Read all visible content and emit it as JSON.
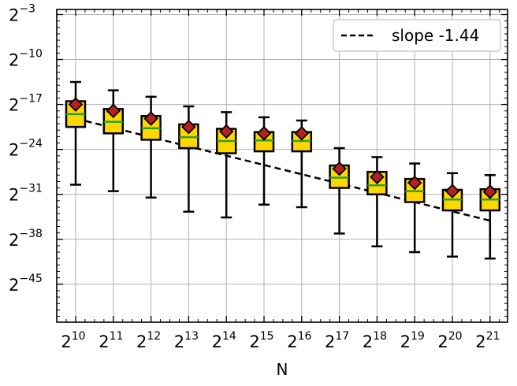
{
  "chart_data": {
    "type": "box",
    "title": "",
    "xlabel": "N",
    "ylabel": "",
    "x_scale": "log2",
    "y_scale": "log2",
    "x_tick_labels": [
      {
        "base": "2",
        "exp": "10"
      },
      {
        "base": "2",
        "exp": "11"
      },
      {
        "base": "2",
        "exp": "12"
      },
      {
        "base": "2",
        "exp": "13"
      },
      {
        "base": "2",
        "exp": "14"
      },
      {
        "base": "2",
        "exp": "15"
      },
      {
        "base": "2",
        "exp": "16"
      },
      {
        "base": "2",
        "exp": "17"
      },
      {
        "base": "2",
        "exp": "18"
      },
      {
        "base": "2",
        "exp": "19"
      },
      {
        "base": "2",
        "exp": "20"
      },
      {
        "base": "2",
        "exp": "21"
      }
    ],
    "y_tick_labels": [
      {
        "base": "2",
        "exp": "−3"
      },
      {
        "base": "2",
        "exp": "−10"
      },
      {
        "base": "2",
        "exp": "−17"
      },
      {
        "base": "2",
        "exp": "−24"
      },
      {
        "base": "2",
        "exp": "−31"
      },
      {
        "base": "2",
        "exp": "−38"
      },
      {
        "base": "2",
        "exp": "−45"
      }
    ],
    "y_tick_values": [
      -3,
      -10,
      -17,
      -24,
      -31,
      -38,
      -45
    ],
    "ylim_log2": [
      -52,
      -2
    ],
    "grid": true,
    "legend_position": "top-right",
    "colors": {
      "box_fill": "#FFD700",
      "box_edge": "#000000",
      "median": "#2CA02C",
      "mean_marker": "#B22222",
      "fit_line": "#000000",
      "grid": "#b0b0b0"
    },
    "boxes": [
      {
        "N_log2": 10,
        "whisker_low": -29.5,
        "q1": -20.5,
        "median": -18.5,
        "q3": -16.5,
        "whisker_high": -13.5,
        "mean": -17.0
      },
      {
        "N_log2": 11,
        "whisker_low": -30.5,
        "q1": -21.5,
        "median": -19.7,
        "q3": -17.7,
        "whisker_high": -14.8,
        "mean": -18.0
      },
      {
        "N_log2": 12,
        "whisker_low": -31.5,
        "q1": -22.5,
        "median": -20.7,
        "q3": -18.8,
        "whisker_high": -15.8,
        "mean": -19.2
      },
      {
        "N_log2": 13,
        "whisker_low": -33.7,
        "q1": -23.8,
        "median": -22.1,
        "q3": -20.1,
        "whisker_high": -17.3,
        "mean": -20.5
      },
      {
        "N_log2": 14,
        "whisker_low": -34.6,
        "q1": -24.6,
        "median": -22.7,
        "q3": -20.8,
        "whisker_high": -18.2,
        "mean": -21.2
      },
      {
        "N_log2": 15,
        "whisker_low": -32.6,
        "q1": -24.3,
        "median": -22.6,
        "q3": -21.3,
        "whisker_high": -19.0,
        "mean": -21.5
      },
      {
        "N_log2": 16,
        "whisker_low": -33.0,
        "q1": -24.3,
        "median": -22.7,
        "q3": -21.3,
        "whisker_high": -19.5,
        "mean": -21.5
      },
      {
        "N_log2": 17,
        "whisker_low": -37.1,
        "q1": -30.0,
        "median": -28.4,
        "q3": -26.5,
        "whisker_high": -23.8,
        "mean": -27.0
      },
      {
        "N_log2": 18,
        "whisker_low": -39.1,
        "q1": -31.0,
        "median": -29.6,
        "q3": -27.5,
        "whisker_high": -25.2,
        "mean": -28.3
      },
      {
        "N_log2": 19,
        "whisker_low": -40.0,
        "q1": -32.2,
        "median": -30.5,
        "q3": -28.6,
        "whisker_high": -26.2,
        "mean": -29.2
      },
      {
        "N_log2": 20,
        "whisker_low": -40.7,
        "q1": -33.5,
        "median": -31.8,
        "q3": -30.3,
        "whisker_high": -27.7,
        "mean": -30.5
      },
      {
        "N_log2": 21,
        "whisker_low": -41.0,
        "q1": -33.5,
        "median": -31.8,
        "q3": -30.2,
        "whisker_high": -28.0,
        "mean": -30.6
      }
    ],
    "fit_line": {
      "label": "slope -1.44",
      "x_log2": [
        10,
        21
      ],
      "y_log2": [
        -19.2,
        -35.1
      ]
    }
  }
}
